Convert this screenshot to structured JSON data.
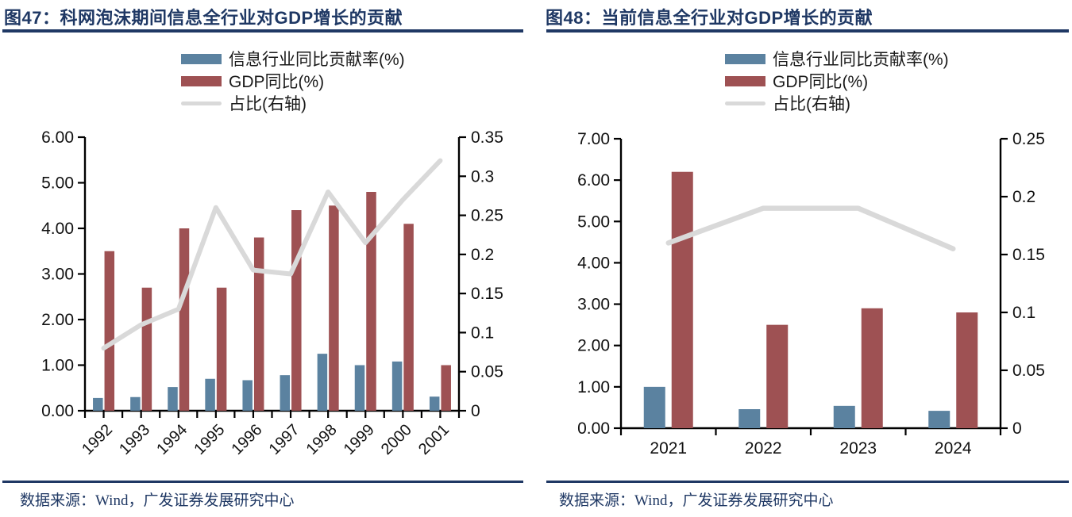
{
  "colors": {
    "navy": "#1F3864",
    "bar_blue": "#5B82A0",
    "bar_red": "#9E5153",
    "line_gray": "#D9D9D9",
    "axis_black": "#000000"
  },
  "panels": [
    {
      "title": "图47：科网泡沫期间信息全行业对GDP增长的贡献",
      "legend": [
        {
          "label": "信息行业同比贡献率(%)",
          "type": "bar",
          "color_key": "bar_blue"
        },
        {
          "label": "GDP同比(%)",
          "type": "bar",
          "color_key": "bar_red"
        },
        {
          "label": "占比(右轴)",
          "type": "line",
          "color_key": "line_gray"
        }
      ],
      "source": "数据来源：Wind，广发证券发展研究中心"
    },
    {
      "title": "图48：当前信息全行业对GDP增长的贡献",
      "legend": [
        {
          "label": "信息行业同比贡献率(%)",
          "type": "bar",
          "color_key": "bar_blue"
        },
        {
          "label": "GDP同比(%)",
          "type": "bar",
          "color_key": "bar_red"
        },
        {
          "label": "占比(右轴)",
          "type": "line",
          "color_key": "line_gray"
        }
      ],
      "source": "数据来源：Wind，广发证券发展研究中心"
    }
  ],
  "chart_data": [
    {
      "type": "bar",
      "title": "图47：科网泡沫期间信息全行业对GDP增长的贡献",
      "categories": [
        "1992",
        "1993",
        "1994",
        "1995",
        "1996",
        "1997",
        "1998",
        "1999",
        "2000",
        "2001"
      ],
      "series": [
        {
          "name": "信息行业同比贡献率(%)",
          "type": "bar",
          "axis": "left",
          "color_key": "bar_blue",
          "values": [
            0.28,
            0.3,
            0.52,
            0.7,
            0.67,
            0.78,
            1.25,
            1.0,
            1.08,
            0.31
          ]
        },
        {
          "name": "GDP同比(%)",
          "type": "bar",
          "axis": "left",
          "color_key": "bar_red",
          "values": [
            3.5,
            2.7,
            4.0,
            2.7,
            3.8,
            4.4,
            4.5,
            4.8,
            4.1,
            1.0
          ]
        },
        {
          "name": "占比(右轴)",
          "type": "line",
          "axis": "right",
          "color_key": "line_gray",
          "values": [
            0.08,
            0.11,
            0.13,
            0.26,
            0.18,
            0.175,
            0.28,
            0.215,
            0.27,
            0.32
          ]
        }
      ],
      "left_axis": {
        "min": 0,
        "max": 6,
        "tick_labels": [
          "6.00",
          "5.00",
          "4.00",
          "3.00",
          "2.00",
          "1.00",
          "0.00"
        ]
      },
      "right_axis": {
        "min": 0,
        "max": 0.35,
        "tick_labels": [
          "0.35",
          "0.3",
          "0.25",
          "0.2",
          "0.15",
          "0.1",
          "0.05",
          "0"
        ]
      },
      "x_label_rotation": -45,
      "grid": false,
      "legend_position": "top"
    },
    {
      "type": "bar",
      "title": "图48：当前信息全行业对GDP增长的贡献",
      "categories": [
        "2021",
        "2022",
        "2023",
        "2024"
      ],
      "series": [
        {
          "name": "信息行业同比贡献率(%)",
          "type": "bar",
          "axis": "left",
          "color_key": "bar_blue",
          "values": [
            1.0,
            0.46,
            0.54,
            0.42
          ]
        },
        {
          "name": "GDP同比(%)",
          "type": "bar",
          "axis": "left",
          "color_key": "bar_red",
          "values": [
            6.2,
            2.5,
            2.9,
            2.8
          ]
        },
        {
          "name": "占比(右轴)",
          "type": "line",
          "axis": "right",
          "color_key": "line_gray",
          "values": [
            0.16,
            0.19,
            0.19,
            0.155
          ]
        }
      ],
      "left_axis": {
        "min": 0,
        "max": 7,
        "tick_labels": [
          "7.00",
          "6.00",
          "5.00",
          "4.00",
          "3.00",
          "2.00",
          "1.00",
          "0.00"
        ]
      },
      "right_axis": {
        "min": 0,
        "max": 0.25,
        "tick_labels": [
          "0.25",
          "0.2",
          "0.15",
          "0.1",
          "0.05",
          "0"
        ]
      },
      "x_label_rotation": 0,
      "grid": false,
      "legend_position": "top"
    }
  ]
}
